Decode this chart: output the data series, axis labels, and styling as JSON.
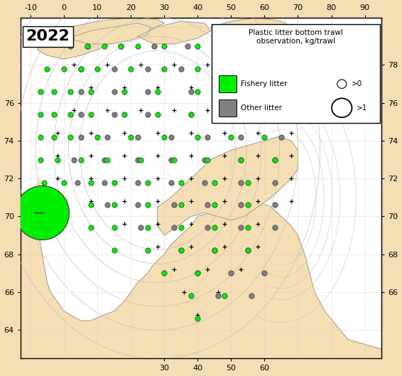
{
  "title": "2022",
  "legend_title": "Plastic litter bottom trawl\nobservation, kg/trawl",
  "legend_fishery": "Fishery litter",
  "legend_other": "Other litter",
  "xlim": [
    -13,
    95
  ],
  "ylim": [
    62.5,
    80.5
  ],
  "xticks_bottom": [
    30,
    40,
    50,
    60
  ],
  "xticks_top": [
    -10,
    0,
    10,
    20,
    30,
    40,
    50,
    60,
    70,
    80,
    90
  ],
  "yticks_left": [
    64,
    66,
    68,
    70,
    72,
    74,
    76
  ],
  "yticks_right": [
    66,
    68,
    70,
    72,
    74,
    76,
    78
  ],
  "land_color": "#F5DEB3",
  "sea_color": "#FFFFFF",
  "contour_color": "#AAAAAA",
  "fishery_color": "#00EE00",
  "other_color": "#808080",
  "cross_color": "#000000",
  "cross_stations": [
    [
      3,
      78.0
    ],
    [
      13,
      78.0
    ],
    [
      23,
      78.0
    ],
    [
      33,
      78.0
    ],
    [
      43,
      78.0
    ],
    [
      53,
      78.0
    ],
    [
      63,
      78.0
    ],
    [
      8,
      76.8
    ],
    [
      18,
      76.8
    ],
    [
      28,
      76.8
    ],
    [
      38,
      76.8
    ],
    [
      48,
      76.8
    ],
    [
      58,
      76.8
    ],
    [
      68,
      76.8
    ],
    [
      3,
      75.6
    ],
    [
      13,
      75.6
    ],
    [
      23,
      75.6
    ],
    [
      33,
      75.6
    ],
    [
      43,
      75.6
    ],
    [
      53,
      75.6
    ],
    [
      63,
      75.6
    ],
    [
      73,
      75.6
    ],
    [
      -2,
      74.4
    ],
    [
      8,
      74.4
    ],
    [
      18,
      74.4
    ],
    [
      28,
      74.4
    ],
    [
      38,
      74.4
    ],
    [
      48,
      74.4
    ],
    [
      58,
      74.4
    ],
    [
      68,
      74.4
    ],
    [
      -2,
      73.2
    ],
    [
      8,
      73.2
    ],
    [
      18,
      73.2
    ],
    [
      28,
      73.2
    ],
    [
      38,
      73.2
    ],
    [
      48,
      73.2
    ],
    [
      58,
      73.2
    ],
    [
      68,
      73.2
    ],
    [
      -2,
      72.0
    ],
    [
      8,
      72.0
    ],
    [
      18,
      72.0
    ],
    [
      28,
      72.0
    ],
    [
      38,
      72.0
    ],
    [
      48,
      72.0
    ],
    [
      58,
      72.0
    ],
    [
      68,
      72.0
    ],
    [
      8,
      70.8
    ],
    [
      18,
      70.8
    ],
    [
      28,
      70.8
    ],
    [
      38,
      70.8
    ],
    [
      48,
      70.8
    ],
    [
      58,
      70.8
    ],
    [
      68,
      70.8
    ],
    [
      18,
      69.6
    ],
    [
      28,
      69.6
    ],
    [
      38,
      69.6
    ],
    [
      48,
      69.6
    ],
    [
      58,
      69.6
    ],
    [
      28,
      68.4
    ],
    [
      38,
      68.4
    ],
    [
      48,
      68.4
    ],
    [
      58,
      68.4
    ],
    [
      33,
      67.2
    ],
    [
      43,
      67.2
    ],
    [
      53,
      67.2
    ],
    [
      36,
      66.0
    ],
    [
      46,
      66.0
    ],
    [
      40,
      64.8
    ]
  ],
  "fishery_stations": [
    [
      2,
      79.0
    ],
    [
      7,
      79.0
    ],
    [
      12,
      79.0
    ],
    [
      17,
      79.0
    ],
    [
      22,
      79.0
    ],
    [
      30,
      79.0
    ],
    [
      40,
      79.0
    ],
    [
      -5,
      77.8
    ],
    [
      0,
      77.8
    ],
    [
      5,
      77.8
    ],
    [
      10,
      77.8
    ],
    [
      20,
      77.8
    ],
    [
      30,
      77.8
    ],
    [
      40,
      77.8
    ],
    [
      50,
      77.8
    ],
    [
      -7,
      76.6
    ],
    [
      -3,
      76.6
    ],
    [
      2,
      76.6
    ],
    [
      8,
      76.6
    ],
    [
      18,
      76.6
    ],
    [
      28,
      76.6
    ],
    [
      40,
      76.6
    ],
    [
      50,
      76.6
    ],
    [
      -7,
      75.4
    ],
    [
      -3,
      75.4
    ],
    [
      2,
      75.4
    ],
    [
      8,
      75.4
    ],
    [
      18,
      75.4
    ],
    [
      28,
      75.4
    ],
    [
      38,
      75.4
    ],
    [
      48,
      75.4
    ],
    [
      60,
      75.4
    ],
    [
      -7,
      74.2
    ],
    [
      -3,
      74.2
    ],
    [
      2,
      74.2
    ],
    [
      10,
      74.2
    ],
    [
      20,
      74.2
    ],
    [
      30,
      74.2
    ],
    [
      40,
      74.2
    ],
    [
      50,
      74.2
    ],
    [
      60,
      74.2
    ],
    [
      -7,
      73.0
    ],
    [
      -2,
      73.0
    ],
    [
      5,
      73.0
    ],
    [
      13,
      73.0
    ],
    [
      23,
      73.0
    ],
    [
      33,
      73.0
    ],
    [
      43,
      73.0
    ],
    [
      53,
      73.0
    ],
    [
      63,
      73.0
    ],
    [
      -6,
      71.8
    ],
    [
      0,
      71.8
    ],
    [
      8,
      71.8
    ],
    [
      15,
      71.8
    ],
    [
      25,
      71.8
    ],
    [
      35,
      71.8
    ],
    [
      45,
      71.8
    ],
    [
      55,
      71.8
    ],
    [
      -6,
      70.6
    ],
    [
      0,
      70.6
    ],
    [
      8,
      70.6
    ],
    [
      15,
      70.6
    ],
    [
      25,
      70.6
    ],
    [
      35,
      70.6
    ],
    [
      45,
      70.6
    ],
    [
      55,
      70.6
    ],
    [
      8,
      69.4
    ],
    [
      15,
      69.4
    ],
    [
      25,
      69.4
    ],
    [
      35,
      69.4
    ],
    [
      45,
      69.4
    ],
    [
      55,
      69.4
    ],
    [
      15,
      68.2
    ],
    [
      25,
      68.2
    ],
    [
      35,
      68.2
    ],
    [
      45,
      68.2
    ],
    [
      55,
      68.2
    ],
    [
      30,
      67.0
    ],
    [
      40,
      67.0
    ],
    [
      38,
      65.8
    ],
    [
      48,
      65.8
    ],
    [
      40,
      64.6
    ]
  ],
  "other_stations": [
    [
      7,
      79.0
    ],
    [
      17,
      79.0
    ],
    [
      27,
      79.0
    ],
    [
      37,
      79.0
    ],
    [
      47,
      79.0
    ],
    [
      5,
      77.8
    ],
    [
      15,
      77.8
    ],
    [
      25,
      77.8
    ],
    [
      35,
      77.8
    ],
    [
      48,
      77.8
    ],
    [
      60,
      77.8
    ],
    [
      5,
      76.6
    ],
    [
      15,
      76.6
    ],
    [
      25,
      76.6
    ],
    [
      38,
      76.6
    ],
    [
      50,
      76.6
    ],
    [
      60,
      76.6
    ],
    [
      5,
      75.4
    ],
    [
      15,
      75.4
    ],
    [
      25,
      75.4
    ],
    [
      38,
      75.4
    ],
    [
      50,
      75.4
    ],
    [
      60,
      75.4
    ],
    [
      70,
      75.4
    ],
    [
      5,
      74.2
    ],
    [
      13,
      74.2
    ],
    [
      22,
      74.2
    ],
    [
      32,
      74.2
    ],
    [
      43,
      74.2
    ],
    [
      53,
      74.2
    ],
    [
      65,
      74.2
    ],
    [
      3,
      73.0
    ],
    [
      12,
      73.0
    ],
    [
      22,
      73.0
    ],
    [
      32,
      73.0
    ],
    [
      42,
      73.0
    ],
    [
      53,
      73.0
    ],
    [
      63,
      73.0
    ],
    [
      4,
      71.8
    ],
    [
      12,
      71.8
    ],
    [
      22,
      71.8
    ],
    [
      32,
      71.8
    ],
    [
      42,
      71.8
    ],
    [
      53,
      71.8
    ],
    [
      63,
      71.8
    ],
    [
      13,
      70.6
    ],
    [
      22,
      70.6
    ],
    [
      33,
      70.6
    ],
    [
      43,
      70.6
    ],
    [
      53,
      70.6
    ],
    [
      63,
      70.6
    ],
    [
      23,
      69.4
    ],
    [
      33,
      69.4
    ],
    [
      43,
      69.4
    ],
    [
      53,
      69.4
    ],
    [
      63,
      69.4
    ],
    [
      35,
      68.2
    ],
    [
      45,
      68.2
    ],
    [
      55,
      68.2
    ],
    [
      40,
      67.0
    ],
    [
      50,
      67.0
    ],
    [
      60,
      67.0
    ],
    [
      46,
      65.8
    ],
    [
      56,
      65.8
    ]
  ],
  "large_fishery_lon": -6.5,
  "large_fishery_lat": 70.2,
  "large_fishery_size": 3000,
  "contour_offsets": [
    1.5,
    3.0,
    5.0,
    7.5,
    10.0,
    13.0
  ],
  "graticule_lons": [
    -10,
    0,
    10,
    20,
    30,
    40,
    50,
    60,
    70,
    80,
    90
  ],
  "graticule_lats": [
    64,
    66,
    68,
    70,
    72,
    74,
    76,
    78,
    80
  ]
}
